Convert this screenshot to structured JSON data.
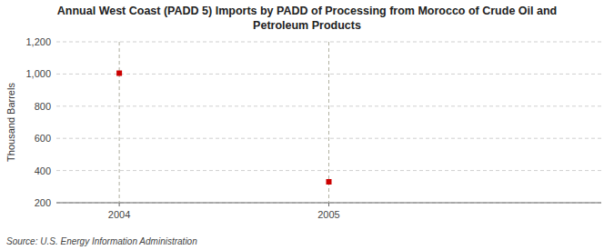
{
  "chart_data": {
    "type": "scatter",
    "title": "Annual West Coast (PADD 5) Imports by PADD of Processing from Morocco of Crude Oil and\nPetroleum Products",
    "ylabel": "Thousand Barrels",
    "source": "Source: U.S. Energy Information Administration",
    "x": [
      2004,
      2005
    ],
    "values": [
      1005,
      330
    ],
    "color": "#cc0000",
    "marker": "square",
    "xlim": [
      2003.7,
      2006.3
    ],
    "ylim": [
      200,
      1200
    ],
    "xticks": [
      2004,
      2005
    ],
    "yticks": [
      200,
      400,
      600,
      800,
      {
        "value": 1000,
        "label": "1,000"
      },
      {
        "value": 1200,
        "label": "1,200"
      }
    ],
    "grid": true
  }
}
